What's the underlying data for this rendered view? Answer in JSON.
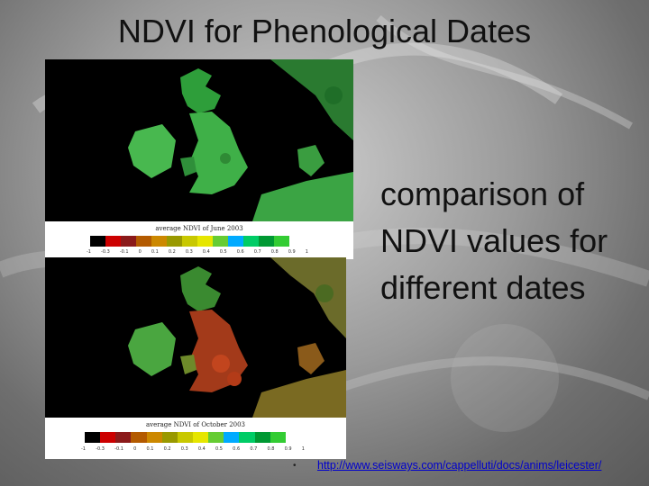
{
  "slide": {
    "title": "NDVI for Phenological Dates",
    "body_lines": [
      "comparison of",
      "NDVI values for",
      "different dates"
    ],
    "bullet_symbol": "•",
    "link_text": "http://www.seisways.com/cappelluti/docs/anims/leicester/"
  },
  "maps": {
    "top": {
      "legend_title": "average NDVI of June 2003",
      "legend_ticks": [
        "-1",
        "-0.3",
        "-0.1",
        "0",
        "0.1",
        "0.2",
        "0.3",
        "0.4",
        "0.5",
        "0.6",
        "0.7",
        "0.8",
        "0.9",
        "1"
      ]
    },
    "bottom": {
      "legend_title": "average NDVI of October 2003",
      "legend_ticks": [
        "-1",
        "-0.3",
        "-0.1",
        "0",
        "0.1",
        "0.2",
        "0.3",
        "0.4",
        "0.5",
        "0.6",
        "0.7",
        "0.8",
        "0.9",
        "1"
      ]
    }
  },
  "colors": {
    "ndvi_scale": [
      "#000000",
      "#cc0000",
      "#8b1a1a",
      "#b35a00",
      "#cc8800",
      "#999900",
      "#c8c800",
      "#e6e600",
      "#66cc33",
      "#00aaff",
      "#00cc66",
      "#009933",
      "#33cc33",
      "#ffffff"
    ]
  }
}
